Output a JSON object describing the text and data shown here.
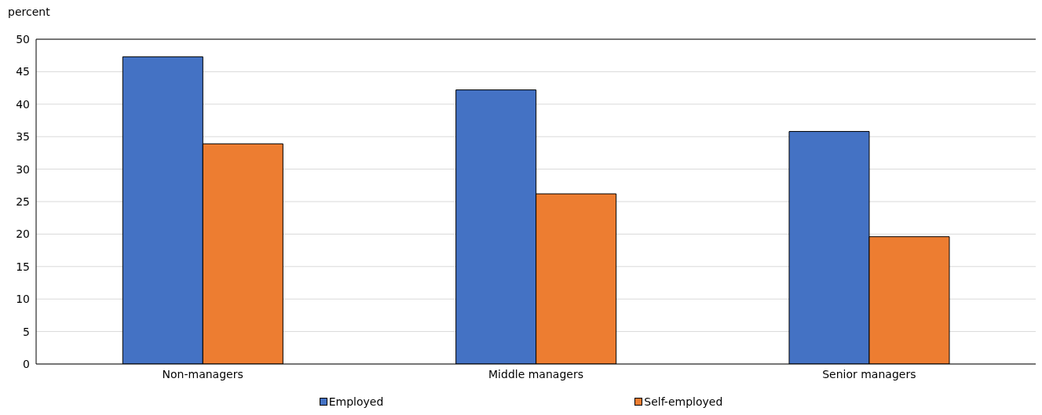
{
  "chart_data": {
    "type": "bar",
    "ylabel": "percent",
    "categories": [
      "Non-managers",
      "Middle managers",
      "Senior managers"
    ],
    "series": [
      {
        "name": "Employed",
        "color": "#4472c4",
        "values": [
          47.3,
          42.2,
          35.8
        ]
      },
      {
        "name": "Self-employed",
        "color": "#ed7d31",
        "values": [
          33.9,
          26.2,
          19.6
        ]
      }
    ],
    "ylim": [
      0,
      50
    ],
    "yticks": [
      0,
      5,
      10,
      15,
      20,
      25,
      30,
      35,
      40,
      45,
      50
    ],
    "grid": "y",
    "legend": "bottom"
  }
}
